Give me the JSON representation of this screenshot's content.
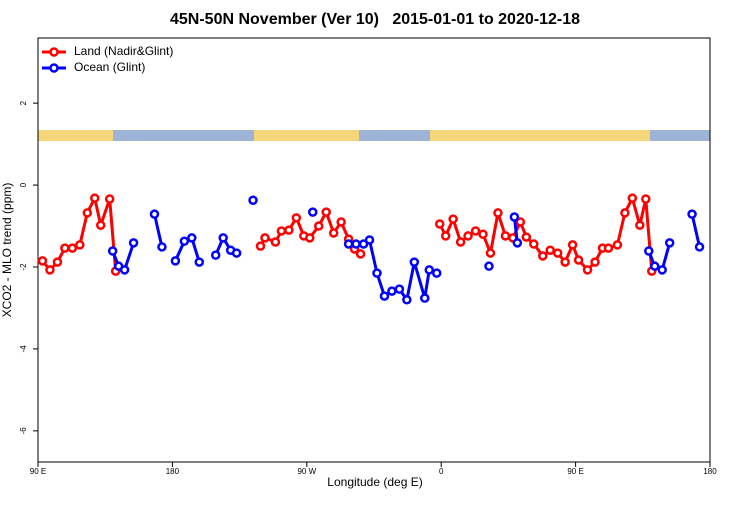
{
  "chart_data": {
    "type": "line",
    "title": "45N-50N November (Ver 10)   2015-01-01 to 2020-12-18",
    "x_label": "Longitude (deg E)",
    "y_label": "XCO2 - MLO trend (ppm)",
    "xlim": [
      90,
      540
    ],
    "xticks": [
      {
        "value": 90,
        "label": "90 E"
      },
      180,
      {
        "value": 270,
        "label": "90 W"
      },
      {
        "value": 360,
        "label": "0"
      },
      {
        "value": 450,
        "label": "90 E"
      },
      {
        "value": 540,
        "label": "180"
      }
    ],
    "ylim": [
      -6.76,
      3.59
    ],
    "yticks": [
      -6,
      -4,
      -2,
      0,
      2
    ],
    "legend": "topleft",
    "series": [
      {
        "name": "Land (Nadir&Glint)",
        "color": "#ff0000",
        "x": [
          93,
          98,
          103,
          108,
          113,
          118,
          123,
          128,
          132,
          138,
          142,
          null,
          239,
          242,
          249,
          253,
          258,
          263,
          268,
          272,
          278,
          283,
          288,
          293,
          298,
          302,
          306,
          null,
          359,
          363,
          368,
          373,
          378,
          383,
          388,
          393,
          398,
          403,
          408,
          413,
          417,
          422,
          428,
          433,
          438,
          443,
          448,
          452,
          458,
          463,
          468,
          472,
          478,
          483,
          488,
          493,
          497,
          501
        ],
        "values": [
          -1.85,
          -2.07,
          -1.88,
          -1.54,
          -1.54,
          -1.46,
          -0.68,
          -0.32,
          -0.98,
          -0.34,
          -2.1,
          null,
          -1.49,
          -1.29,
          -1.39,
          -1.12,
          -1.1,
          -0.8,
          -1.24,
          -1.29,
          -1.0,
          -0.66,
          -1.17,
          -0.9,
          -1.32,
          -1.56,
          -1.68,
          null,
          -0.95,
          -1.24,
          -0.83,
          -1.39,
          -1.24,
          -1.12,
          -1.2,
          -1.66,
          -0.68,
          -1.24,
          -1.29,
          -0.9,
          -1.27,
          -1.44,
          -1.73,
          -1.59,
          -1.66,
          -1.88,
          -1.46,
          -1.83,
          -2.07,
          -1.88,
          -1.54,
          -1.54,
          -1.46,
          -0.68,
          -0.32,
          -0.98,
          -0.34,
          -2.1
        ]
      },
      {
        "name": "Ocean (Glint)",
        "color": "#0000ff",
        "x": [
          140,
          144,
          148,
          154,
          null,
          168,
          173,
          null,
          182,
          188,
          193,
          198,
          null,
          209,
          214,
          219,
          223,
          null,
          234,
          null,
          274,
          null,
          298,
          303,
          308,
          312,
          317,
          322,
          327,
          332,
          337,
          342,
          349,
          352,
          357,
          null,
          392,
          null,
          409,
          411,
          null,
          499,
          503,
          508,
          513,
          null,
          528,
          533
        ],
        "values": [
          -1.61,
          -1.98,
          -2.07,
          -1.41,
          null,
          -0.71,
          -1.51,
          null,
          -1.85,
          -1.37,
          -1.29,
          -1.88,
          null,
          -1.71,
          -1.29,
          -1.59,
          -1.66,
          null,
          -0.37,
          null,
          -0.66,
          null,
          -1.44,
          -1.44,
          -1.44,
          -1.34,
          -2.15,
          -2.71,
          -2.59,
          -2.54,
          -2.8,
          -1.88,
          -2.76,
          -2.07,
          -2.15,
          null,
          -1.98,
          null,
          -0.78,
          -1.41,
          null,
          -1.61,
          -1.98,
          -2.07,
          -1.41,
          null,
          -0.71,
          -1.51
        ]
      }
    ]
  }
}
